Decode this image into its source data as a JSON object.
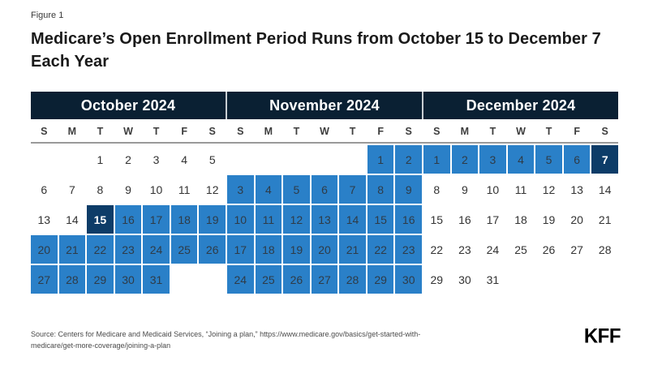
{
  "figure_label": "Figure 1",
  "title": "Medicare’s Open Enrollment Period Runs from October 15 to December 7 Each Year",
  "colors": {
    "month_header_navy": "#0a2033",
    "highlight_blue": "#2a80c8",
    "endpoint_navy": "#0d3c68",
    "day_text": "#333333",
    "weekday_text": "#3d3d3d",
    "rule_gray": "#9a9a9a"
  },
  "calendar": {
    "weekday_labels": [
      "S",
      "M",
      "T",
      "W",
      "T",
      "F",
      "S"
    ],
    "cell_notation": {
      "+": "highlighted open-enrollment day (blue)",
      "*": "period endpoint day (dark navy, white text)",
      "": "empty cell"
    },
    "months": [
      {
        "name": "October 2024",
        "weeks": [
          [
            "",
            "",
            "1",
            "2",
            "3",
            "4",
            "5"
          ],
          [
            "6",
            "7",
            "8",
            "9",
            "10",
            "11",
            "12"
          ],
          [
            "13",
            "14",
            "15*",
            "16+",
            "17+",
            "18+",
            "19+"
          ],
          [
            "20+",
            "21+",
            "22+",
            "23+",
            "24+",
            "25+",
            "26+"
          ],
          [
            "27+",
            "28+",
            "29+",
            "30+",
            "31+",
            "",
            ""
          ]
        ]
      },
      {
        "name": "November 2024",
        "weeks": [
          [
            "",
            "",
            "",
            "",
            "",
            "1+",
            "2+"
          ],
          [
            "3+",
            "4+",
            "5+",
            "6+",
            "7+",
            "8+",
            "9+"
          ],
          [
            "10+",
            "11+",
            "12+",
            "13+",
            "14+",
            "15+",
            "16+"
          ],
          [
            "17+",
            "18+",
            "19+",
            "20+",
            "21+",
            "22+",
            "23+"
          ],
          [
            "24+",
            "25+",
            "26+",
            "27+",
            "28+",
            "29+",
            "30+"
          ]
        ]
      },
      {
        "name": "December 2024",
        "weeks": [
          [
            "1+",
            "2+",
            "3+",
            "4+",
            "5+",
            "6+",
            "7*"
          ],
          [
            "8",
            "9",
            "10",
            "11",
            "12",
            "13",
            "14"
          ],
          [
            "15",
            "16",
            "17",
            "18",
            "19",
            "20",
            "21"
          ],
          [
            "22",
            "23",
            "24",
            "25",
            "26",
            "27",
            "28"
          ],
          [
            "29",
            "30",
            "31",
            "",
            "",
            "",
            ""
          ]
        ]
      }
    ]
  },
  "footer": {
    "source_line1": "Source: Centers for Medicare and Medicaid Services, “Joining a plan,” https://www.medicare.gov/basics/get-started-with-",
    "source_line2": "medicare/get-more-coverage/joining-a-plan",
    "logo": "KFF"
  },
  "chart_data": {
    "type": "table",
    "title": "Medicare’s Open Enrollment Period Runs from October 15 to December 7 Each Year",
    "months": [
      "October 2024",
      "November 2024",
      "December 2024"
    ],
    "enrollment_period": {
      "start": "October 15, 2024",
      "end": "December 7, 2024"
    },
    "highlighted_day_ranges": [
      {
        "month": "October 2024",
        "from": 15,
        "to": 31
      },
      {
        "month": "November 2024",
        "from": 1,
        "to": 30
      },
      {
        "month": "December 2024",
        "from": 1,
        "to": 7
      }
    ],
    "endpoint_days": [
      {
        "month": "October 2024",
        "day": 15
      },
      {
        "month": "December 2024",
        "day": 7
      }
    ]
  }
}
